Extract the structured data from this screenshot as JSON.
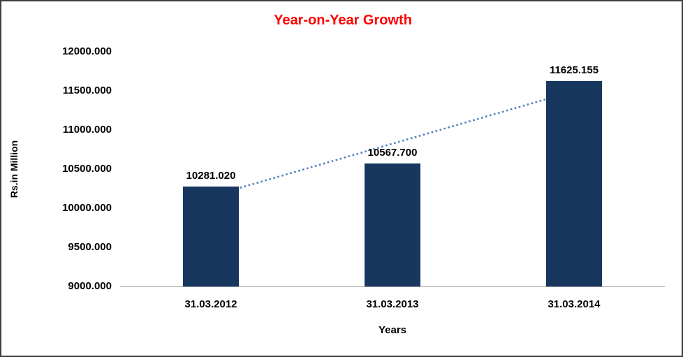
{
  "chart_data": {
    "type": "bar",
    "title": "Year-on-Year Growth",
    "title_color": "#ff0000",
    "xlabel": "Years",
    "ylabel": "Rs.in Million",
    "categories": [
      "31.03.2012",
      "31.03.2013",
      "31.03.2014"
    ],
    "values": [
      10281.02,
      10567.7,
      11625.155
    ],
    "data_labels": [
      "10281.020",
      "10567.700",
      "11625.155"
    ],
    "ylim": [
      9000,
      12000
    ],
    "ytick_values": [
      12000,
      11500,
      11000,
      10500,
      10000,
      9500,
      9000
    ],
    "ytick_labels": [
      "12000.000",
      "11500.000",
      "11000.000",
      "10500.000",
      "10000.000",
      "9500.000",
      "9000.000"
    ],
    "bar_color": "#17375e",
    "trendline": {
      "style": "dotted-linear",
      "color": "#4f81bd"
    },
    "grid": "off",
    "legend": "none"
  }
}
